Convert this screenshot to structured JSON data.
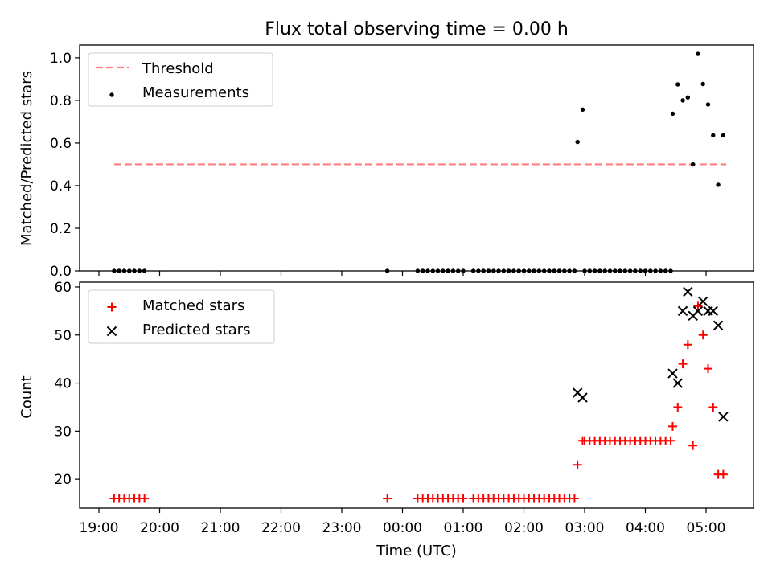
{
  "chart_data": [
    {
      "type": "scatter",
      "title": "Flux total observing time = 0.00 h",
      "xlabel": "",
      "ylabel": "Matched/Predicted stars",
      "ylim": [
        0,
        1.06
      ],
      "yticks": [
        "0.0",
        "0.2",
        "0.4",
        "0.6",
        "0.8",
        "1.0"
      ],
      "grid": false,
      "legend_position": "top-left",
      "threshold": {
        "name": "Threshold",
        "value": 0.5,
        "x_start": "19:15",
        "x_end": "05:20",
        "color": "#ff7f7f"
      },
      "series": [
        {
          "name": "Measurements",
          "color": "#000000",
          "points": [
            [
              "19:15",
              0.0
            ],
            [
              "19:20",
              0.0
            ],
            [
              "19:25",
              0.0
            ],
            [
              "19:30",
              0.0
            ],
            [
              "19:35",
              0.0
            ],
            [
              "19:40",
              0.0
            ],
            [
              "19:45",
              0.0
            ],
            [
              "23:45",
              0.0
            ],
            [
              "00:15",
              0.0
            ],
            [
              "00:20",
              0.0
            ],
            [
              "00:25",
              0.0
            ],
            [
              "00:30",
              0.0
            ],
            [
              "00:35",
              0.0
            ],
            [
              "00:40",
              0.0
            ],
            [
              "00:45",
              0.0
            ],
            [
              "00:50",
              0.0
            ],
            [
              "00:55",
              0.0
            ],
            [
              "01:00",
              0.0
            ],
            [
              "01:10",
              0.0
            ],
            [
              "01:15",
              0.0
            ],
            [
              "01:20",
              0.0
            ],
            [
              "01:25",
              0.0
            ],
            [
              "01:30",
              0.0
            ],
            [
              "01:35",
              0.0
            ],
            [
              "01:40",
              0.0
            ],
            [
              "01:45",
              0.0
            ],
            [
              "01:50",
              0.0
            ],
            [
              "01:55",
              0.0
            ],
            [
              "02:00",
              0.0
            ],
            [
              "02:05",
              0.0
            ],
            [
              "02:10",
              0.0
            ],
            [
              "02:15",
              0.0
            ],
            [
              "02:20",
              0.0
            ],
            [
              "02:25",
              0.0
            ],
            [
              "02:30",
              0.0
            ],
            [
              "02:35",
              0.0
            ],
            [
              "02:40",
              0.0
            ],
            [
              "02:45",
              0.0
            ],
            [
              "02:50",
              0.0
            ],
            [
              "02:53",
              0.605
            ],
            [
              "02:58",
              0.757
            ],
            [
              "03:00",
              0.0
            ],
            [
              "03:05",
              0.0
            ],
            [
              "03:10",
              0.0
            ],
            [
              "03:15",
              0.0
            ],
            [
              "03:20",
              0.0
            ],
            [
              "03:25",
              0.0
            ],
            [
              "03:30",
              0.0
            ],
            [
              "03:35",
              0.0
            ],
            [
              "03:40",
              0.0
            ],
            [
              "03:45",
              0.0
            ],
            [
              "03:50",
              0.0
            ],
            [
              "03:55",
              0.0
            ],
            [
              "04:00",
              0.0
            ],
            [
              "04:05",
              0.0
            ],
            [
              "04:10",
              0.0
            ],
            [
              "04:15",
              0.0
            ],
            [
              "04:20",
              0.0
            ],
            [
              "04:25",
              0.0
            ],
            [
              "04:27",
              0.738
            ],
            [
              "04:32",
              0.875
            ],
            [
              "04:37",
              0.8
            ],
            [
              "04:42",
              0.814
            ],
            [
              "04:47",
              0.5
            ],
            [
              "04:52",
              1.018
            ],
            [
              "04:57",
              0.877
            ],
            [
              "05:02",
              0.781
            ],
            [
              "05:07",
              0.636
            ],
            [
              "05:12",
              0.404
            ],
            [
              "05:17",
              0.636
            ]
          ]
        }
      ]
    },
    {
      "type": "scatter",
      "title": "",
      "xlabel": "Time (UTC)",
      "ylabel": "Count",
      "ylim": [
        14,
        61
      ],
      "yticks": [
        "20",
        "30",
        "40",
        "50",
        "60"
      ],
      "xtick_labels": [
        "19:00",
        "20:00",
        "21:00",
        "22:00",
        "23:00",
        "00:00",
        "01:00",
        "02:00",
        "03:00",
        "04:00",
        "05:00"
      ],
      "xlim": [
        "18:50",
        "05:52"
      ],
      "grid": false,
      "legend_position": "top-left",
      "series": [
        {
          "name": "Matched stars",
          "marker": "plus",
          "color": "#ff0000",
          "points": [
            [
              "19:15",
              16
            ],
            [
              "19:20",
              16
            ],
            [
              "19:25",
              16
            ],
            [
              "19:30",
              16
            ],
            [
              "19:35",
              16
            ],
            [
              "19:40",
              16
            ],
            [
              "19:45",
              16
            ],
            [
              "23:45",
              16
            ],
            [
              "00:15",
              16
            ],
            [
              "00:20",
              16
            ],
            [
              "00:25",
              16
            ],
            [
              "00:30",
              16
            ],
            [
              "00:35",
              16
            ],
            [
              "00:40",
              16
            ],
            [
              "00:45",
              16
            ],
            [
              "00:50",
              16
            ],
            [
              "00:55",
              16
            ],
            [
              "01:00",
              16
            ],
            [
              "01:10",
              16
            ],
            [
              "01:15",
              16
            ],
            [
              "01:20",
              16
            ],
            [
              "01:25",
              16
            ],
            [
              "01:30",
              16
            ],
            [
              "01:35",
              16
            ],
            [
              "01:40",
              16
            ],
            [
              "01:45",
              16
            ],
            [
              "01:50",
              16
            ],
            [
              "01:55",
              16
            ],
            [
              "02:00",
              16
            ],
            [
              "02:05",
              16
            ],
            [
              "02:10",
              16
            ],
            [
              "02:15",
              16
            ],
            [
              "02:20",
              16
            ],
            [
              "02:25",
              16
            ],
            [
              "02:30",
              16
            ],
            [
              "02:35",
              16
            ],
            [
              "02:40",
              16
            ],
            [
              "02:45",
              16
            ],
            [
              "02:50",
              16
            ],
            [
              "02:53",
              23
            ],
            [
              "02:58",
              28
            ],
            [
              "03:00",
              28
            ],
            [
              "03:05",
              28
            ],
            [
              "03:10",
              28
            ],
            [
              "03:15",
              28
            ],
            [
              "03:20",
              28
            ],
            [
              "03:25",
              28
            ],
            [
              "03:30",
              28
            ],
            [
              "03:35",
              28
            ],
            [
              "03:40",
              28
            ],
            [
              "03:45",
              28
            ],
            [
              "03:50",
              28
            ],
            [
              "03:55",
              28
            ],
            [
              "04:00",
              28
            ],
            [
              "04:05",
              28
            ],
            [
              "04:10",
              28
            ],
            [
              "04:15",
              28
            ],
            [
              "04:20",
              28
            ],
            [
              "04:25",
              28
            ],
            [
              "04:27",
              31
            ],
            [
              "04:32",
              35
            ],
            [
              "04:37",
              44
            ],
            [
              "04:42",
              48
            ],
            [
              "04:47",
              27
            ],
            [
              "04:52",
              56
            ],
            [
              "04:57",
              50
            ],
            [
              "05:02",
              43
            ],
            [
              "05:07",
              35
            ],
            [
              "05:12",
              21
            ],
            [
              "05:17",
              21
            ]
          ]
        },
        {
          "name": "Predicted stars",
          "marker": "x",
          "color": "#000000",
          "points": [
            [
              "02:53",
              38
            ],
            [
              "02:58",
              37
            ],
            [
              "04:27",
              42
            ],
            [
              "04:32",
              40
            ],
            [
              "04:37",
              55
            ],
            [
              "04:42",
              59
            ],
            [
              "04:47",
              54
            ],
            [
              "04:52",
              55
            ],
            [
              "04:57",
              57
            ],
            [
              "05:02",
              55
            ],
            [
              "05:07",
              55
            ],
            [
              "05:12",
              52
            ],
            [
              "05:17",
              33
            ]
          ]
        }
      ]
    }
  ]
}
